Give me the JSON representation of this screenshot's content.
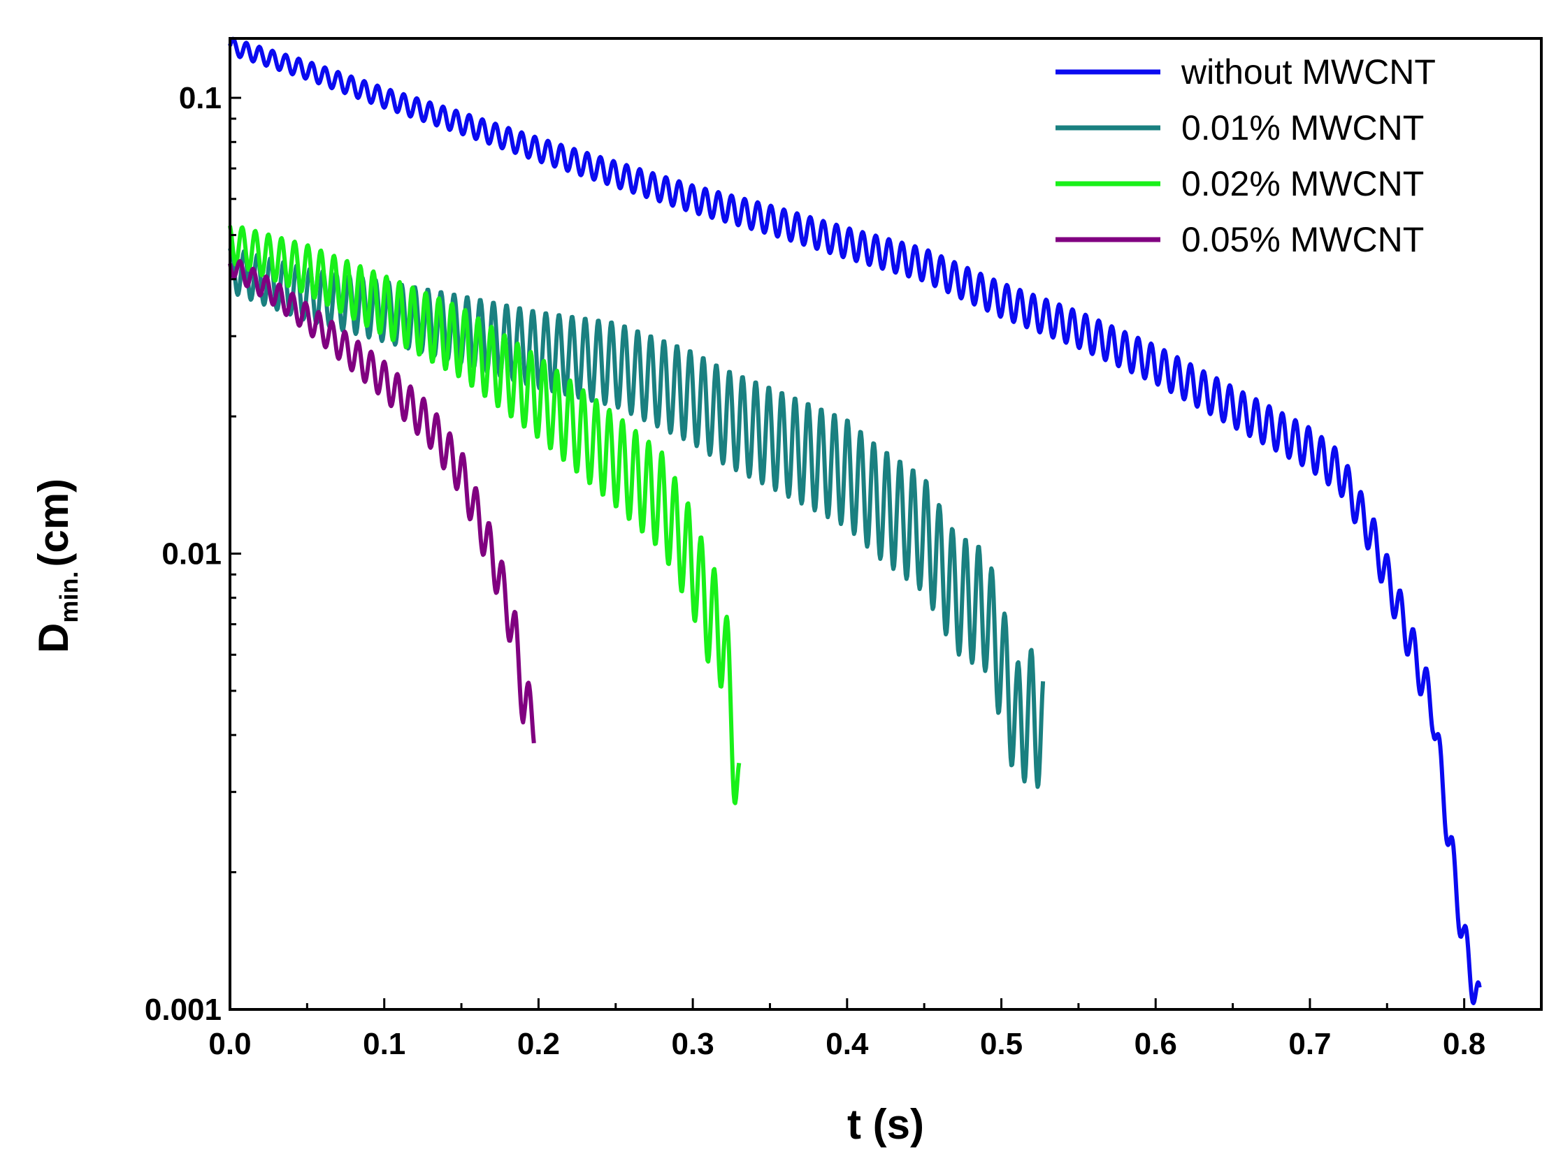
{
  "chart_data": {
    "type": "line",
    "title": "",
    "xlabel": "t (s)",
    "ylabel_main": "D",
    "ylabel_sub": "min.",
    "ylabel_unit": "(cm)",
    "xlim": [
      0,
      0.85
    ],
    "ylim": [
      0.001,
      0.135
    ],
    "yscale": "log",
    "x_ticks": [
      0.0,
      0.1,
      0.2,
      0.3,
      0.4,
      0.5,
      0.6,
      0.7,
      0.8
    ],
    "x_tick_labels": [
      "0.0",
      "0.1",
      "0.2",
      "0.3",
      "0.4",
      "0.5",
      "0.6",
      "0.7",
      "0.8"
    ],
    "y_ticks": [
      0.001,
      0.01,
      0.1
    ],
    "y_tick_labels": [
      "0.001",
      "0.01",
      "0.1"
    ],
    "legend_position": "top-right",
    "series": [
      {
        "name": "without MWCNT",
        "color": "#0a0af0",
        "oscillation": 0.05,
        "points": [
          [
            0.0,
            0.13
          ],
          [
            0.05,
            0.115
          ],
          [
            0.1,
            0.1
          ],
          [
            0.15,
            0.088
          ],
          [
            0.2,
            0.077
          ],
          [
            0.3,
            0.06
          ],
          [
            0.35,
            0.054
          ],
          [
            0.4,
            0.048
          ],
          [
            0.45,
            0.043
          ],
          [
            0.5,
            0.036
          ],
          [
            0.55,
            0.031
          ],
          [
            0.6,
            0.026
          ],
          [
            0.65,
            0.021
          ],
          [
            0.7,
            0.017
          ],
          [
            0.72,
            0.015
          ],
          [
            0.74,
            0.011
          ],
          [
            0.76,
            0.0072
          ],
          [
            0.78,
            0.0045
          ],
          [
            0.79,
            0.0024
          ],
          [
            0.8,
            0.0014
          ],
          [
            0.81,
            0.001
          ]
        ]
      },
      {
        "name": "0.01% MWCNT",
        "color": "#1a8080",
        "oscillation": 0.14,
        "points": [
          [
            0.0,
            0.042
          ],
          [
            0.05,
            0.037
          ],
          [
            0.1,
            0.034
          ],
          [
            0.15,
            0.031
          ],
          [
            0.2,
            0.028
          ],
          [
            0.25,
            0.026
          ],
          [
            0.3,
            0.022
          ],
          [
            0.32,
            0.02
          ],
          [
            0.35,
            0.018
          ],
          [
            0.4,
            0.015
          ],
          [
            0.42,
            0.013
          ],
          [
            0.45,
            0.011
          ],
          [
            0.47,
            0.0082
          ],
          [
            0.49,
            0.0075
          ],
          [
            0.5,
            0.0058
          ],
          [
            0.51,
            0.0042
          ],
          [
            0.52,
            0.0045
          ],
          [
            0.527,
            0.004
          ]
        ]
      },
      {
        "name": "0.02% MWCNT",
        "color": "#19f019",
        "oscillation": 0.12,
        "points": [
          [
            0.0,
            0.048
          ],
          [
            0.05,
            0.042
          ],
          [
            0.1,
            0.035
          ],
          [
            0.15,
            0.029
          ],
          [
            0.2,
            0.022
          ],
          [
            0.25,
            0.016
          ],
          [
            0.28,
            0.013
          ],
          [
            0.3,
            0.0095
          ],
          [
            0.31,
            0.0075
          ],
          [
            0.32,
            0.0065
          ],
          [
            0.325,
            0.0045
          ],
          [
            0.33,
            0.0028
          ]
        ]
      },
      {
        "name": "0.05% MWCNT",
        "color": "#800080",
        "oscillation": 0.06,
        "points": [
          [
            0.0,
            0.043
          ],
          [
            0.03,
            0.037
          ],
          [
            0.06,
            0.031
          ],
          [
            0.1,
            0.024
          ],
          [
            0.13,
            0.019
          ],
          [
            0.15,
            0.015
          ],
          [
            0.165,
            0.011
          ],
          [
            0.175,
            0.0088
          ],
          [
            0.185,
            0.0065
          ],
          [
            0.19,
            0.0048
          ],
          [
            0.197,
            0.0043
          ]
        ]
      }
    ]
  }
}
